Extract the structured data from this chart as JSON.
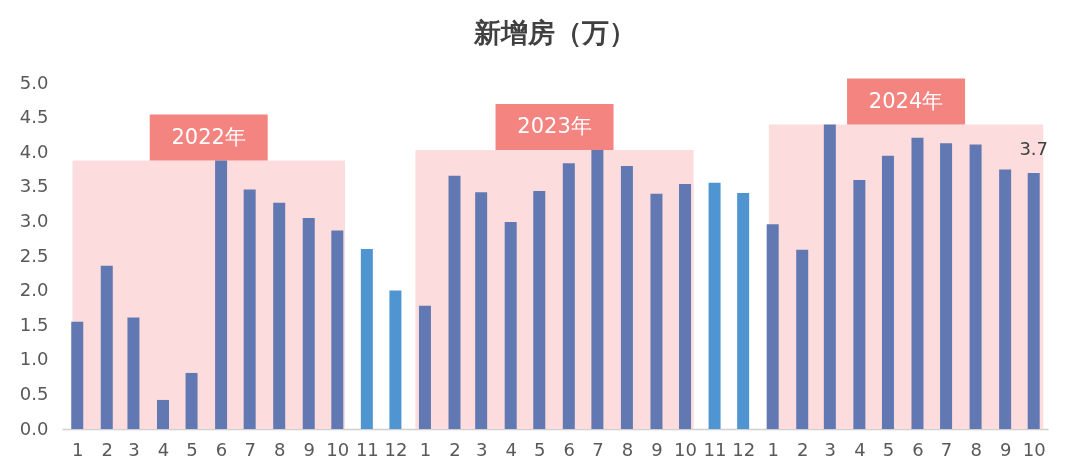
{
  "chart_data": {
    "type": "bar",
    "title": "新增房（万）",
    "x": [
      "2022-01",
      "2022-02",
      "2022-03",
      "2022-04",
      "2022-05",
      "2022-06",
      "2022-07",
      "2022-08",
      "2022-09",
      "2022-10",
      "2022-11",
      "2022-12",
      "2023-01",
      "2023-02",
      "2023-03",
      "2023-04",
      "2023-05",
      "2023-06",
      "2023-07",
      "2023-08",
      "2023-09",
      "2023-10",
      "2023-11",
      "2023-12",
      "2024-01",
      "2024-02",
      "2024-03",
      "2024-04",
      "2024-05",
      "2024-06",
      "2024-07",
      "2024-08",
      "2024-09",
      "2024-10"
    ],
    "values": [
      1.55,
      2.36,
      1.61,
      0.42,
      0.81,
      3.88,
      3.46,
      3.27,
      3.05,
      2.87,
      2.6,
      2.0,
      1.78,
      3.66,
      3.42,
      2.99,
      3.44,
      3.84,
      4.03,
      3.8,
      3.4,
      3.54,
      3.56,
      3.41,
      2.96,
      2.59,
      4.4,
      3.6,
      3.95,
      4.21,
      4.13,
      4.11,
      3.75,
      3.7
    ],
    "colors": [
      "#6278b3",
      "#6278b3",
      "#6278b3",
      "#6278b3",
      "#6278b3",
      "#6278b3",
      "#6278b3",
      "#6278b3",
      "#6278b3",
      "#6278b3",
      "#4f95d2",
      "#4f95d2",
      "#6278b3",
      "#6278b3",
      "#6278b3",
      "#6278b3",
      "#6278b3",
      "#6278b3",
      "#6278b3",
      "#6278b3",
      "#6278b3",
      "#6278b3",
      "#4f95d2",
      "#4f95d2",
      "#6278b3",
      "#6278b3",
      "#6278b3",
      "#6278b3",
      "#6278b3",
      "#6278b3",
      "#6278b3",
      "#6278b3",
      "#6278b3",
      "#6278b3"
    ],
    "value_labels": [
      null,
      null,
      null,
      null,
      null,
      null,
      null,
      null,
      null,
      null,
      null,
      null,
      null,
      null,
      null,
      null,
      null,
      null,
      null,
      null,
      null,
      null,
      null,
      null,
      null,
      null,
      null,
      null,
      null,
      null,
      null,
      null,
      null,
      "3.7"
    ],
    "xlim": [
      "2021-12-16",
      "2024-10-16"
    ],
    "xticks": [
      {
        "value": "2022-01",
        "label": "1"
      },
      {
        "value": "2022-02",
        "label": "2"
      },
      {
        "value": "2022-03",
        "label": "3"
      },
      {
        "value": "2022-04",
        "label": "4"
      },
      {
        "value": "2022-05",
        "label": "5"
      },
      {
        "value": "2022-06",
        "label": "6"
      },
      {
        "value": "2022-07",
        "label": "7"
      },
      {
        "value": "2022-08",
        "label": "8"
      },
      {
        "value": "2022-09",
        "label": "9"
      },
      {
        "value": "2022-10",
        "label": "10"
      },
      {
        "value": "2022-11",
        "label": "11"
      },
      {
        "value": "2022-12",
        "label": "12"
      },
      {
        "value": "2023-01",
        "label": "1"
      },
      {
        "value": "2023-02",
        "label": "2"
      },
      {
        "value": "2023-03",
        "label": "3"
      },
      {
        "value": "2023-04",
        "label": "4"
      },
      {
        "value": "2023-05",
        "label": "5"
      },
      {
        "value": "2023-06",
        "label": "6"
      },
      {
        "value": "2023-07",
        "label": "7"
      },
      {
        "value": "2023-08",
        "label": "8"
      },
      {
        "value": "2023-09",
        "label": "9"
      },
      {
        "value": "2023-10",
        "label": "10"
      },
      {
        "value": "2023-11",
        "label": "11"
      },
      {
        "value": "2023-12",
        "label": "12"
      },
      {
        "value": "2024-01",
        "label": "1"
      },
      {
        "value": "2024-02",
        "label": "2"
      },
      {
        "value": "2024-03",
        "label": "3"
      },
      {
        "value": "2024-04",
        "label": "4"
      },
      {
        "value": "2024-05",
        "label": "5"
      },
      {
        "value": "2024-06",
        "label": "6"
      },
      {
        "value": "2024-07",
        "label": "7"
      },
      {
        "value": "2024-08",
        "label": "8"
      },
      {
        "value": "2024-09",
        "label": "9"
      },
      {
        "value": "2024-10",
        "label": "10"
      }
    ],
    "ylim": [
      0,
      5
    ],
    "yticks": [
      {
        "value": 0,
        "label": "0.0"
      },
      {
        "value": 0.5,
        "label": "0.5"
      },
      {
        "value": 1,
        "label": "1.0"
      },
      {
        "value": 1.5,
        "label": "1.5"
      },
      {
        "value": 2,
        "label": "2.0"
      },
      {
        "value": 2.5,
        "label": "2.5"
      },
      {
        "value": 3,
        "label": "3.0"
      },
      {
        "value": 3.5,
        "label": "3.5"
      },
      {
        "value": 4,
        "label": "4.0"
      },
      {
        "value": 4.5,
        "label": "4.5"
      },
      {
        "value": 5,
        "label": "5.0"
      }
    ],
    "bands": [
      {
        "axis": "x",
        "from": "2021-12-27",
        "to": "2022-10-09",
        "label": "2022年",
        "color": "#fcdcdc"
      },
      {
        "axis": "x",
        "from": "2022-12-22",
        "to": "2023-10-10",
        "label": "2023年",
        "color": "#fcdcdc"
      },
      {
        "axis": "x",
        "from": "2023-12-28",
        "to": "2024-10-11",
        "label": "2024年",
        "color": "#fcdcdc"
      }
    ],
    "grid": false
  }
}
